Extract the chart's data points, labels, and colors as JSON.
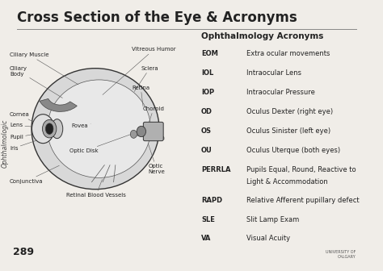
{
  "title": "Cross Section of the Eye & Acronyms",
  "bg_color": "#f0ede8",
  "title_color": "#222222",
  "acronyms_title": "Ophthalmology Acronyms",
  "acronyms": [
    [
      "EOM",
      "Extra ocular movements"
    ],
    [
      "IOL",
      "Intraocular Lens"
    ],
    [
      "IOP",
      "Intraocular Pressure"
    ],
    [
      "OD",
      "Oculus Dexter (right eye)"
    ],
    [
      "OS",
      "Oculus Sinister (left eye)"
    ],
    [
      "OU",
      "Oculus Uterque (both eyes)"
    ],
    [
      "PERRLA",
      "Pupils Equal, Round, Reactive to\nLight & Accommodation"
    ],
    [
      "RAPD",
      "Relative Afferent pupillary defect"
    ],
    [
      "SLE",
      "Slit Lamp Exam"
    ],
    [
      "VA",
      "Visual Acuity"
    ]
  ],
  "page_number": "289",
  "side_text": "Ophthalmologic"
}
